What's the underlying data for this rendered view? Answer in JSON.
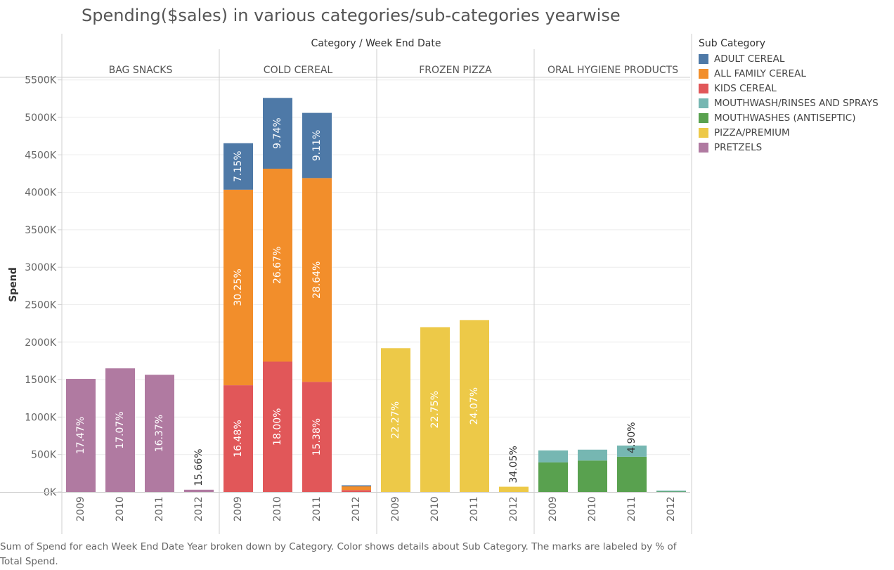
{
  "chart_data": {
    "type": "bar",
    "stacked": true,
    "title": "Spending($sales) in various categories/sub-categories yearwise",
    "column_header": "Category  /  Week End Date",
    "ylabel": "Spend",
    "ylim": [
      0,
      5600000
    ],
    "yticks": [
      0,
      500000,
      1000000,
      1500000,
      2000000,
      2500000,
      3000000,
      3500000,
      4000000,
      4500000,
      5000000,
      5500000
    ],
    "ytick_labels": [
      "0K",
      "500K",
      "1000K",
      "1500K",
      "2000K",
      "2500K",
      "3000K",
      "3500K",
      "4000K",
      "4500K",
      "5000K",
      "5500K"
    ],
    "grid": true,
    "legend_position": "right",
    "legend_title": "Sub Category",
    "legend": [
      {
        "name": "ADULT CEREAL",
        "color": "#4e79a7"
      },
      {
        "name": "ALL FAMILY CEREAL",
        "color": "#f28e2b"
      },
      {
        "name": "KIDS CEREAL",
        "color": "#e15759"
      },
      {
        "name": "MOUTHWASH/RINSES AND SPRAYS",
        "color": "#76b7b2"
      },
      {
        "name": "MOUTHWASHES (ANTISEPTIC)",
        "color": "#59a14f"
      },
      {
        "name": "PIZZA/PREMIUM",
        "color": "#edc948"
      },
      {
        "name": "PRETZELS",
        "color": "#b07aa1"
      }
    ],
    "panels": [
      {
        "category": "BAG SNACKS",
        "bars": [
          {
            "year": "2009",
            "segments": [
              {
                "sub": "PRETZELS",
                "value": 1510000,
                "label": "17.47%"
              }
            ]
          },
          {
            "year": "2010",
            "segments": [
              {
                "sub": "PRETZELS",
                "value": 1650000,
                "label": "17.07%"
              }
            ]
          },
          {
            "year": "2011",
            "segments": [
              {
                "sub": "PRETZELS",
                "value": 1565000,
                "label": "16.37%"
              }
            ]
          },
          {
            "year": "2012",
            "segments": [
              {
                "sub": "PRETZELS",
                "value": 30000,
                "label": "15.66%"
              }
            ]
          }
        ]
      },
      {
        "category": "COLD CEREAL",
        "bars": [
          {
            "year": "2009",
            "segments": [
              {
                "sub": "KIDS CEREAL",
                "value": 1425000,
                "label": "16.48%"
              },
              {
                "sub": "ALL FAMILY CEREAL",
                "value": 2610000,
                "label": "30.25%"
              },
              {
                "sub": "ADULT CEREAL",
                "value": 620000,
                "label": "7.15%"
              }
            ]
          },
          {
            "year": "2010",
            "segments": [
              {
                "sub": "KIDS CEREAL",
                "value": 1740000,
                "label": "18.00%"
              },
              {
                "sub": "ALL FAMILY CEREAL",
                "value": 2575000,
                "label": "26.67%"
              },
              {
                "sub": "ADULT CEREAL",
                "value": 945000,
                "label": "9.74%"
              }
            ]
          },
          {
            "year": "2011",
            "segments": [
              {
                "sub": "KIDS CEREAL",
                "value": 1470000,
                "label": "15.38%"
              },
              {
                "sub": "ALL FAMILY CEREAL",
                "value": 2720000,
                "label": "28.64%"
              },
              {
                "sub": "ADULT CEREAL",
                "value": 870000,
                "label": "9.11%"
              }
            ]
          },
          {
            "year": "2012",
            "segments": [
              {
                "sub": "KIDS CEREAL",
                "value": 25000,
                "label": ""
              },
              {
                "sub": "ALL FAMILY CEREAL",
                "value": 50000,
                "label": ""
              },
              {
                "sub": "ADULT CEREAL",
                "value": 10000,
                "label": ""
              }
            ]
          }
        ]
      },
      {
        "category": "FROZEN PIZZA",
        "bars": [
          {
            "year": "2009",
            "segments": [
              {
                "sub": "PIZZA/PREMIUM",
                "value": 1920000,
                "label": "22.27%"
              }
            ]
          },
          {
            "year": "2010",
            "segments": [
              {
                "sub": "PIZZA/PREMIUM",
                "value": 2200000,
                "label": "22.75%"
              }
            ]
          },
          {
            "year": "2011",
            "segments": [
              {
                "sub": "PIZZA/PREMIUM",
                "value": 2295000,
                "label": "24.07%"
              }
            ]
          },
          {
            "year": "2012",
            "segments": [
              {
                "sub": "PIZZA/PREMIUM",
                "value": 70000,
                "label": "34.05%"
              }
            ]
          }
        ]
      },
      {
        "category": "ORAL HYGIENE PRODUCTS",
        "bars": [
          {
            "year": "2009",
            "segments": [
              {
                "sub": "MOUTHWASHES (ANTISEPTIC)",
                "value": 395000,
                "label": ""
              },
              {
                "sub": "MOUTHWASH/RINSES AND SPRAYS",
                "value": 160000,
                "label": ""
              }
            ]
          },
          {
            "year": "2010",
            "segments": [
              {
                "sub": "MOUTHWASHES (ANTISEPTIC)",
                "value": 420000,
                "label": ""
              },
              {
                "sub": "MOUTHWASH/RINSES AND SPRAYS",
                "value": 145000,
                "label": ""
              }
            ]
          },
          {
            "year": "2011",
            "segments": [
              {
                "sub": "MOUTHWASHES (ANTISEPTIC)",
                "value": 470000,
                "label": "4.90%"
              },
              {
                "sub": "MOUTHWASH/RINSES AND SPRAYS",
                "value": 150000,
                "label": ""
              }
            ]
          },
          {
            "year": "2012",
            "segments": [
              {
                "sub": "MOUTHWASHES (ANTISEPTIC)",
                "value": 5000,
                "label": ""
              },
              {
                "sub": "MOUTHWASH/RINSES AND SPRAYS",
                "value": 8000,
                "label": ""
              }
            ]
          }
        ]
      }
    ]
  },
  "caption": "Sum of Spend for each Week End Date Year broken down by Category.  Color shows details about Sub Category.  The marks are labeled by % of Total Spend."
}
